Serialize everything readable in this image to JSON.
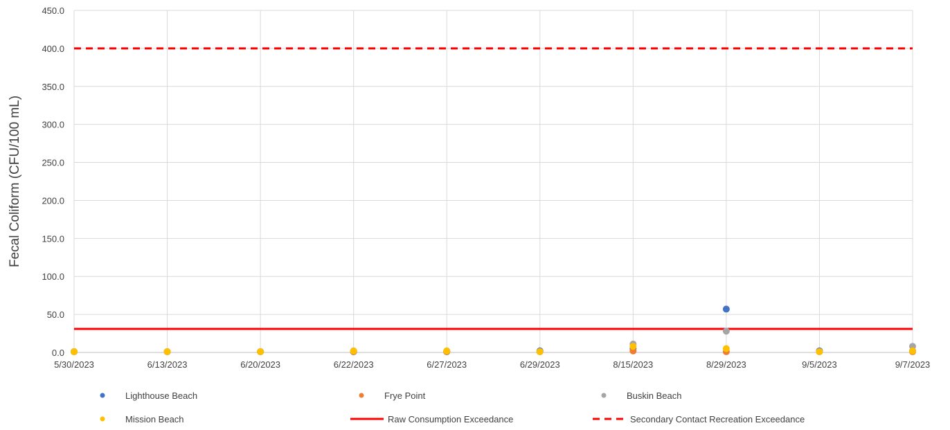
{
  "chart_data": {
    "type": "scatter",
    "title": "",
    "xlabel": "",
    "ylabel": "Fecal Coliform (CFU/100 mL)",
    "ylim": [
      0,
      450
    ],
    "yticks": [
      "0.0",
      "50.0",
      "100.0",
      "150.0",
      "200.0",
      "250.0",
      "300.0",
      "350.0",
      "400.0",
      "450.0"
    ],
    "categories": [
      "5/30/2023",
      "6/13/2023",
      "6/20/2023",
      "6/22/2023",
      "6/27/2023",
      "6/29/2023",
      "8/15/2023",
      "8/29/2023",
      "9/5/2023",
      "9/7/2023"
    ],
    "grid": true,
    "legend_position": "bottom",
    "series": [
      {
        "name": "Lighthouse Beach",
        "color": "#4472C4",
        "marker": "circle",
        "values": [
          1,
          1,
          1,
          1,
          1,
          2,
          5,
          57,
          2,
          2
        ]
      },
      {
        "name": "Frye Point",
        "color": "#ED7D31",
        "marker": "circle",
        "values": [
          1,
          1,
          1,
          1,
          1,
          1,
          2,
          1,
          1,
          1
        ]
      },
      {
        "name": "Buskin Beach",
        "color": "#A5A5A5",
        "marker": "circle",
        "values": [
          1,
          1,
          1,
          2,
          2,
          1,
          11,
          28,
          1,
          8
        ]
      },
      {
        "name": "Mission Beach",
        "color": "#FFC000",
        "marker": "circle",
        "values": [
          1,
          1,
          1,
          2,
          2,
          1,
          8,
          5,
          1,
          2
        ]
      }
    ],
    "reference_lines": [
      {
        "name": "Raw Consumption Exceedance",
        "value": 31,
        "color": "#FF0000",
        "style": "solid"
      },
      {
        "name": "Secondary Contact Recreation Exceedance",
        "value": 400,
        "color": "#FF0000",
        "style": "dashed"
      }
    ]
  }
}
